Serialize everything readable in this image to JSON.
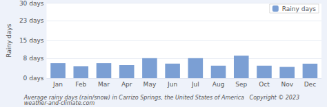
{
  "chart_data": {
    "type": "bar",
    "categories": [
      "Jan",
      "Feb",
      "Mar",
      "Apr",
      "May",
      "Jun",
      "Jul",
      "Aug",
      "Sep",
      "Oct",
      "Nov",
      "Dec"
    ],
    "series": [
      {
        "name": "Rainy days",
        "color": "#7b9fd4",
        "values": [
          6.0,
          4.8,
          6.0,
          5.2,
          8.0,
          5.8,
          8.0,
          5.0,
          9.0,
          5.0,
          4.5,
          5.8
        ]
      }
    ],
    "ylabel": "Rainy days",
    "ylim": [
      0,
      30
    ],
    "yticks": [
      {
        "value": 0,
        "label": "0 days"
      },
      {
        "value": 8,
        "label": "8 days"
      },
      {
        "value": 15,
        "label": "15 days"
      },
      {
        "value": 23,
        "label": "23 days"
      },
      {
        "value": 30,
        "label": "30 days"
      }
    ],
    "grid": true,
    "legend": "upper right",
    "caption": "Average rainy days (rain/snow) in Carrizo Springs, the United States of America   Copyright © 2023  weather-and-climate.com"
  }
}
